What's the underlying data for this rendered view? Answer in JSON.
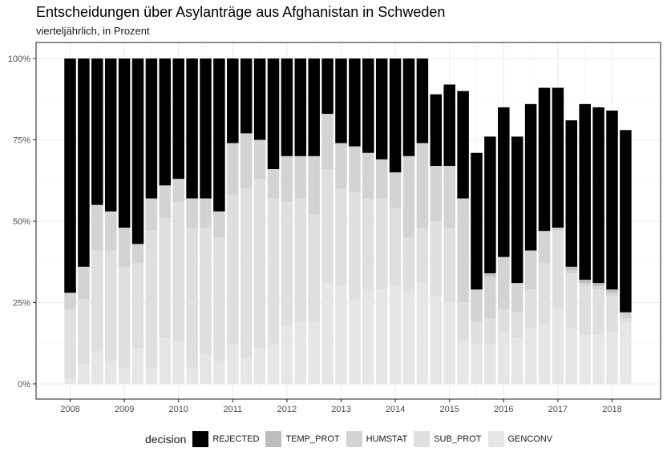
{
  "title": "Entscheidungen über Asylanträge aus Afghanistan in Schweden",
  "subtitle": "vierteljährlich, in Prozent",
  "legend": {
    "title": "decision",
    "items": [
      {
        "label": "REJECTED",
        "color": "#000000"
      },
      {
        "label": "TEMP_PROT",
        "color": "#bdbdbd"
      },
      {
        "label": "HUMSTAT",
        "color": "#d3d3d3"
      },
      {
        "label": "SUB_PROT",
        "color": "#dfdfdf"
      },
      {
        "label": "GENCONV",
        "color": "#e6e6e6"
      }
    ]
  },
  "chart_data": {
    "type": "bar",
    "stacked": true,
    "title": "Entscheidungen über Asylanträge aus Afghanistan in Schweden",
    "subtitle": "vierteljährlich, in Prozent",
    "x_ticks": [
      "2008",
      "2009",
      "2010",
      "2011",
      "2012",
      "2013",
      "2014",
      "2015",
      "2016",
      "2017",
      "2018"
    ],
    "y_ticks": [
      "0%",
      "25%",
      "50%",
      "75%",
      "100%"
    ],
    "ylim": [
      0,
      100
    ],
    "grid": true,
    "legend_position": "bottom",
    "x_start": 2008.0,
    "x_step": 0.25,
    "series": [
      {
        "name": "GENCONV",
        "color": "#e6e6e6",
        "values": [
          2,
          6,
          10,
          7,
          5,
          11,
          5,
          14,
          13,
          5,
          9,
          7,
          12,
          8,
          11,
          12,
          18,
          19,
          19,
          31,
          30,
          26,
          29,
          29,
          30,
          28,
          31,
          27,
          25,
          13,
          12,
          12,
          16,
          14,
          17,
          18,
          23,
          17,
          15,
          15,
          16,
          19
        ]
      },
      {
        "name": "SUB_PROT",
        "color": "#dfdfdf",
        "values": [
          21,
          20,
          31,
          34,
          31,
          26,
          42,
          37,
          43,
          43,
          39,
          38,
          46,
          52,
          52,
          45,
          38,
          38,
          33,
          35,
          30,
          33,
          28,
          28,
          24,
          17,
          17,
          23,
          23,
          12,
          7,
          8,
          7,
          8,
          12,
          19,
          24,
          17,
          15,
          14,
          11,
          1
        ]
      },
      {
        "name": "HUMSTAT",
        "color": "#d3d3d3",
        "values": [
          5,
          10,
          14,
          12,
          12,
          6,
          10,
          10,
          7,
          9,
          9,
          8,
          16,
          17,
          12,
          9,
          14,
          13,
          18,
          17,
          14,
          14,
          14,
          12,
          11,
          25,
          26,
          17,
          19,
          32,
          10,
          13,
          16,
          9,
          12,
          10,
          1,
          1,
          1,
          1,
          1,
          2
        ]
      },
      {
        "name": "TEMP_PROT",
        "color": "#bdbdbd",
        "values": [
          0,
          0,
          0,
          0,
          0,
          0,
          0,
          0,
          0,
          0,
          0,
          0,
          0,
          0,
          0,
          0,
          0,
          0,
          0,
          0,
          0,
          0,
          0,
          0,
          0,
          0,
          0,
          0,
          0,
          0,
          0,
          1,
          0,
          0,
          0,
          0,
          0,
          1,
          1,
          1,
          1,
          0
        ]
      },
      {
        "name": "REJECTED",
        "color": "#000000",
        "values": [
          72,
          64,
          45,
          47,
          52,
          57,
          43,
          39,
          37,
          43,
          43,
          47,
          26,
          23,
          25,
          34,
          30,
          30,
          30,
          17,
          26,
          27,
          29,
          31,
          35,
          30,
          26,
          22,
          25,
          33,
          42,
          42,
          46,
          45,
          45,
          44,
          43,
          45,
          54,
          54,
          55,
          56
        ]
      }
    ]
  }
}
